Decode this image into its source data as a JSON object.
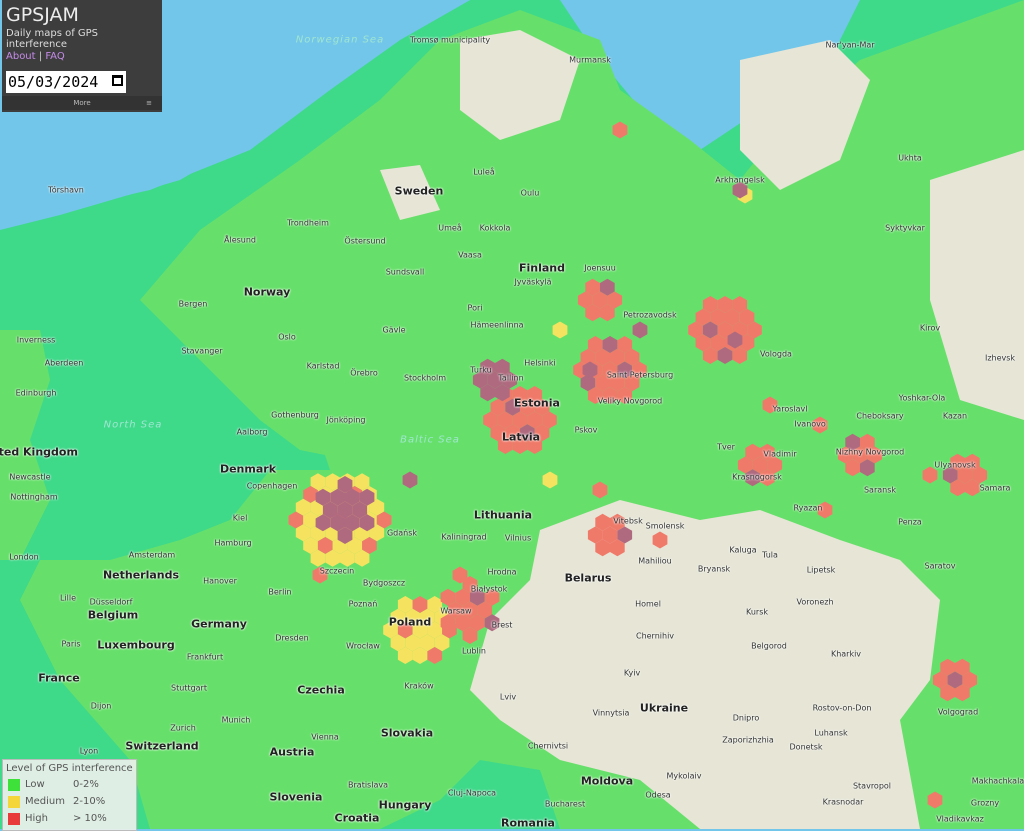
{
  "panel": {
    "title": "GPSJAM",
    "subtitle": "Daily maps of GPS interference",
    "about_link": "About",
    "separator": "|",
    "faq_link": "FAQ",
    "date_value": "05/03/2024",
    "more_label": "More",
    "more_icon": "≡"
  },
  "legend": {
    "title": "Level of GPS interference",
    "levels": [
      {
        "name": "Low",
        "range": "0-2%",
        "color": "#3ee03a"
      },
      {
        "name": "Medium",
        "range": "2-10%",
        "color": "#f5d63a"
      },
      {
        "name": "High",
        "range": "> 10%",
        "color": "#e83a3a"
      }
    ]
  },
  "map": {
    "colors": {
      "sea": "#72c6ea",
      "land_low": "#66e06a",
      "sea_low": "#3fd98a",
      "unmonitored": "#e6e5d6",
      "medium": "#f5e360",
      "high": "#f07a6a",
      "mixed": "#b06a80"
    },
    "countries": [
      "Sweden",
      "Finland",
      "Norway",
      "Estonia",
      "Latvia",
      "Lithuania",
      "Denmark",
      "United Kingdom",
      "Belarus",
      "Poland",
      "Germany",
      "Netherlands",
      "Belgium",
      "France",
      "Czechia",
      "Luxembourg",
      "Switzerland",
      "Slovakia",
      "Austria",
      "Hungary",
      "Ukraine",
      "Moldova",
      "Romania",
      "Slovenia",
      "Croatia"
    ],
    "seas": [
      "Norwegian Sea",
      "North Sea",
      "Baltic Sea"
    ],
    "cities": [
      "Tromsø municipality",
      "Murmansk",
      "Nar'yan-Mar",
      "Arkhangelsk",
      "Ukhta",
      "Syktyvkar",
      "Luleå",
      "Oulu",
      "Umeå",
      "Kokkola",
      "Vaasa",
      "Joensuu",
      "Jyväskylä",
      "Petrozavodsk",
      "Tórshavn",
      "Ålesund",
      "Trondheim",
      "Östersund",
      "Sundsvall",
      "Bergen",
      "Stavanger",
      "Oslo",
      "Gävle",
      "Pori",
      "Hämeenlinna",
      "Turku",
      "Helsinki",
      "Tallinn",
      "Saint Petersburg",
      "Vologda",
      "Kirov",
      "Izhevsk",
      "Yoshkar-Ola",
      "Kazan",
      "Cheboksary",
      "Nizhny Novgorod",
      "Ivanovo",
      "Yaroslavl",
      "Veliky Novgorod",
      "Pskov",
      "Tver",
      "Vladimir",
      "Krasnogorsk",
      "Ryazan",
      "Penza",
      "Saransk",
      "Ulyanovsk",
      "Samara",
      "Saratov",
      "Inverness",
      "Aberdeen",
      "Edinburgh",
      "Karlstad",
      "Örebro",
      "Stockholm",
      "Gothenburg",
      "Jönköping",
      "Aalborg",
      "Copenhagen",
      "Kiel",
      "Hamburg",
      "Gdańsk",
      "Kaliningrad",
      "Vilnius",
      "Vitebsk",
      "Smolensk",
      "Kaluga",
      "Tula",
      "Lipetsk",
      "Voronezh",
      "Bryansk",
      "Kursk",
      "Belgorod",
      "Kharkiv",
      "Homel",
      "Chernihiv",
      "Mahiliou",
      "Hrodna",
      "Białystok",
      "Brest",
      "Warsaw",
      "Lublin",
      "Szczecin",
      "Bydgoszcz",
      "Poznań",
      "Berlin",
      "Hanover",
      "Amsterdam",
      "Düsseldorf",
      "Lille",
      "Newcastle",
      "Nottingham",
      "London",
      "Paris",
      "Frankfurt",
      "Dresden",
      "Wrocław",
      "Kraków",
      "Stuttgart",
      "Munich",
      "Vienna",
      "Zurich",
      "Dijon",
      "Lyon",
      "Kyiv",
      "Vinnytsia",
      "Lviv",
      "Dnipro",
      "Zaporizhzhia",
      "Donetsk",
      "Luhansk",
      "Rostov-on-Don",
      "Volgograd",
      "Chernivtsi",
      "Mykolaiv",
      "Odesa",
      "Cluj-Napoca",
      "Krasnodar",
      "Stavropol",
      "Grozny",
      "Vladikavkaz",
      "Makhachkala",
      "Bratislava",
      "Bucharest"
    ]
  }
}
